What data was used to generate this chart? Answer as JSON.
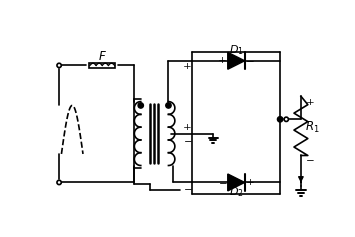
{
  "fig_width": 3.55,
  "fig_height": 2.37,
  "dpi": 100,
  "lw": 1.2
}
